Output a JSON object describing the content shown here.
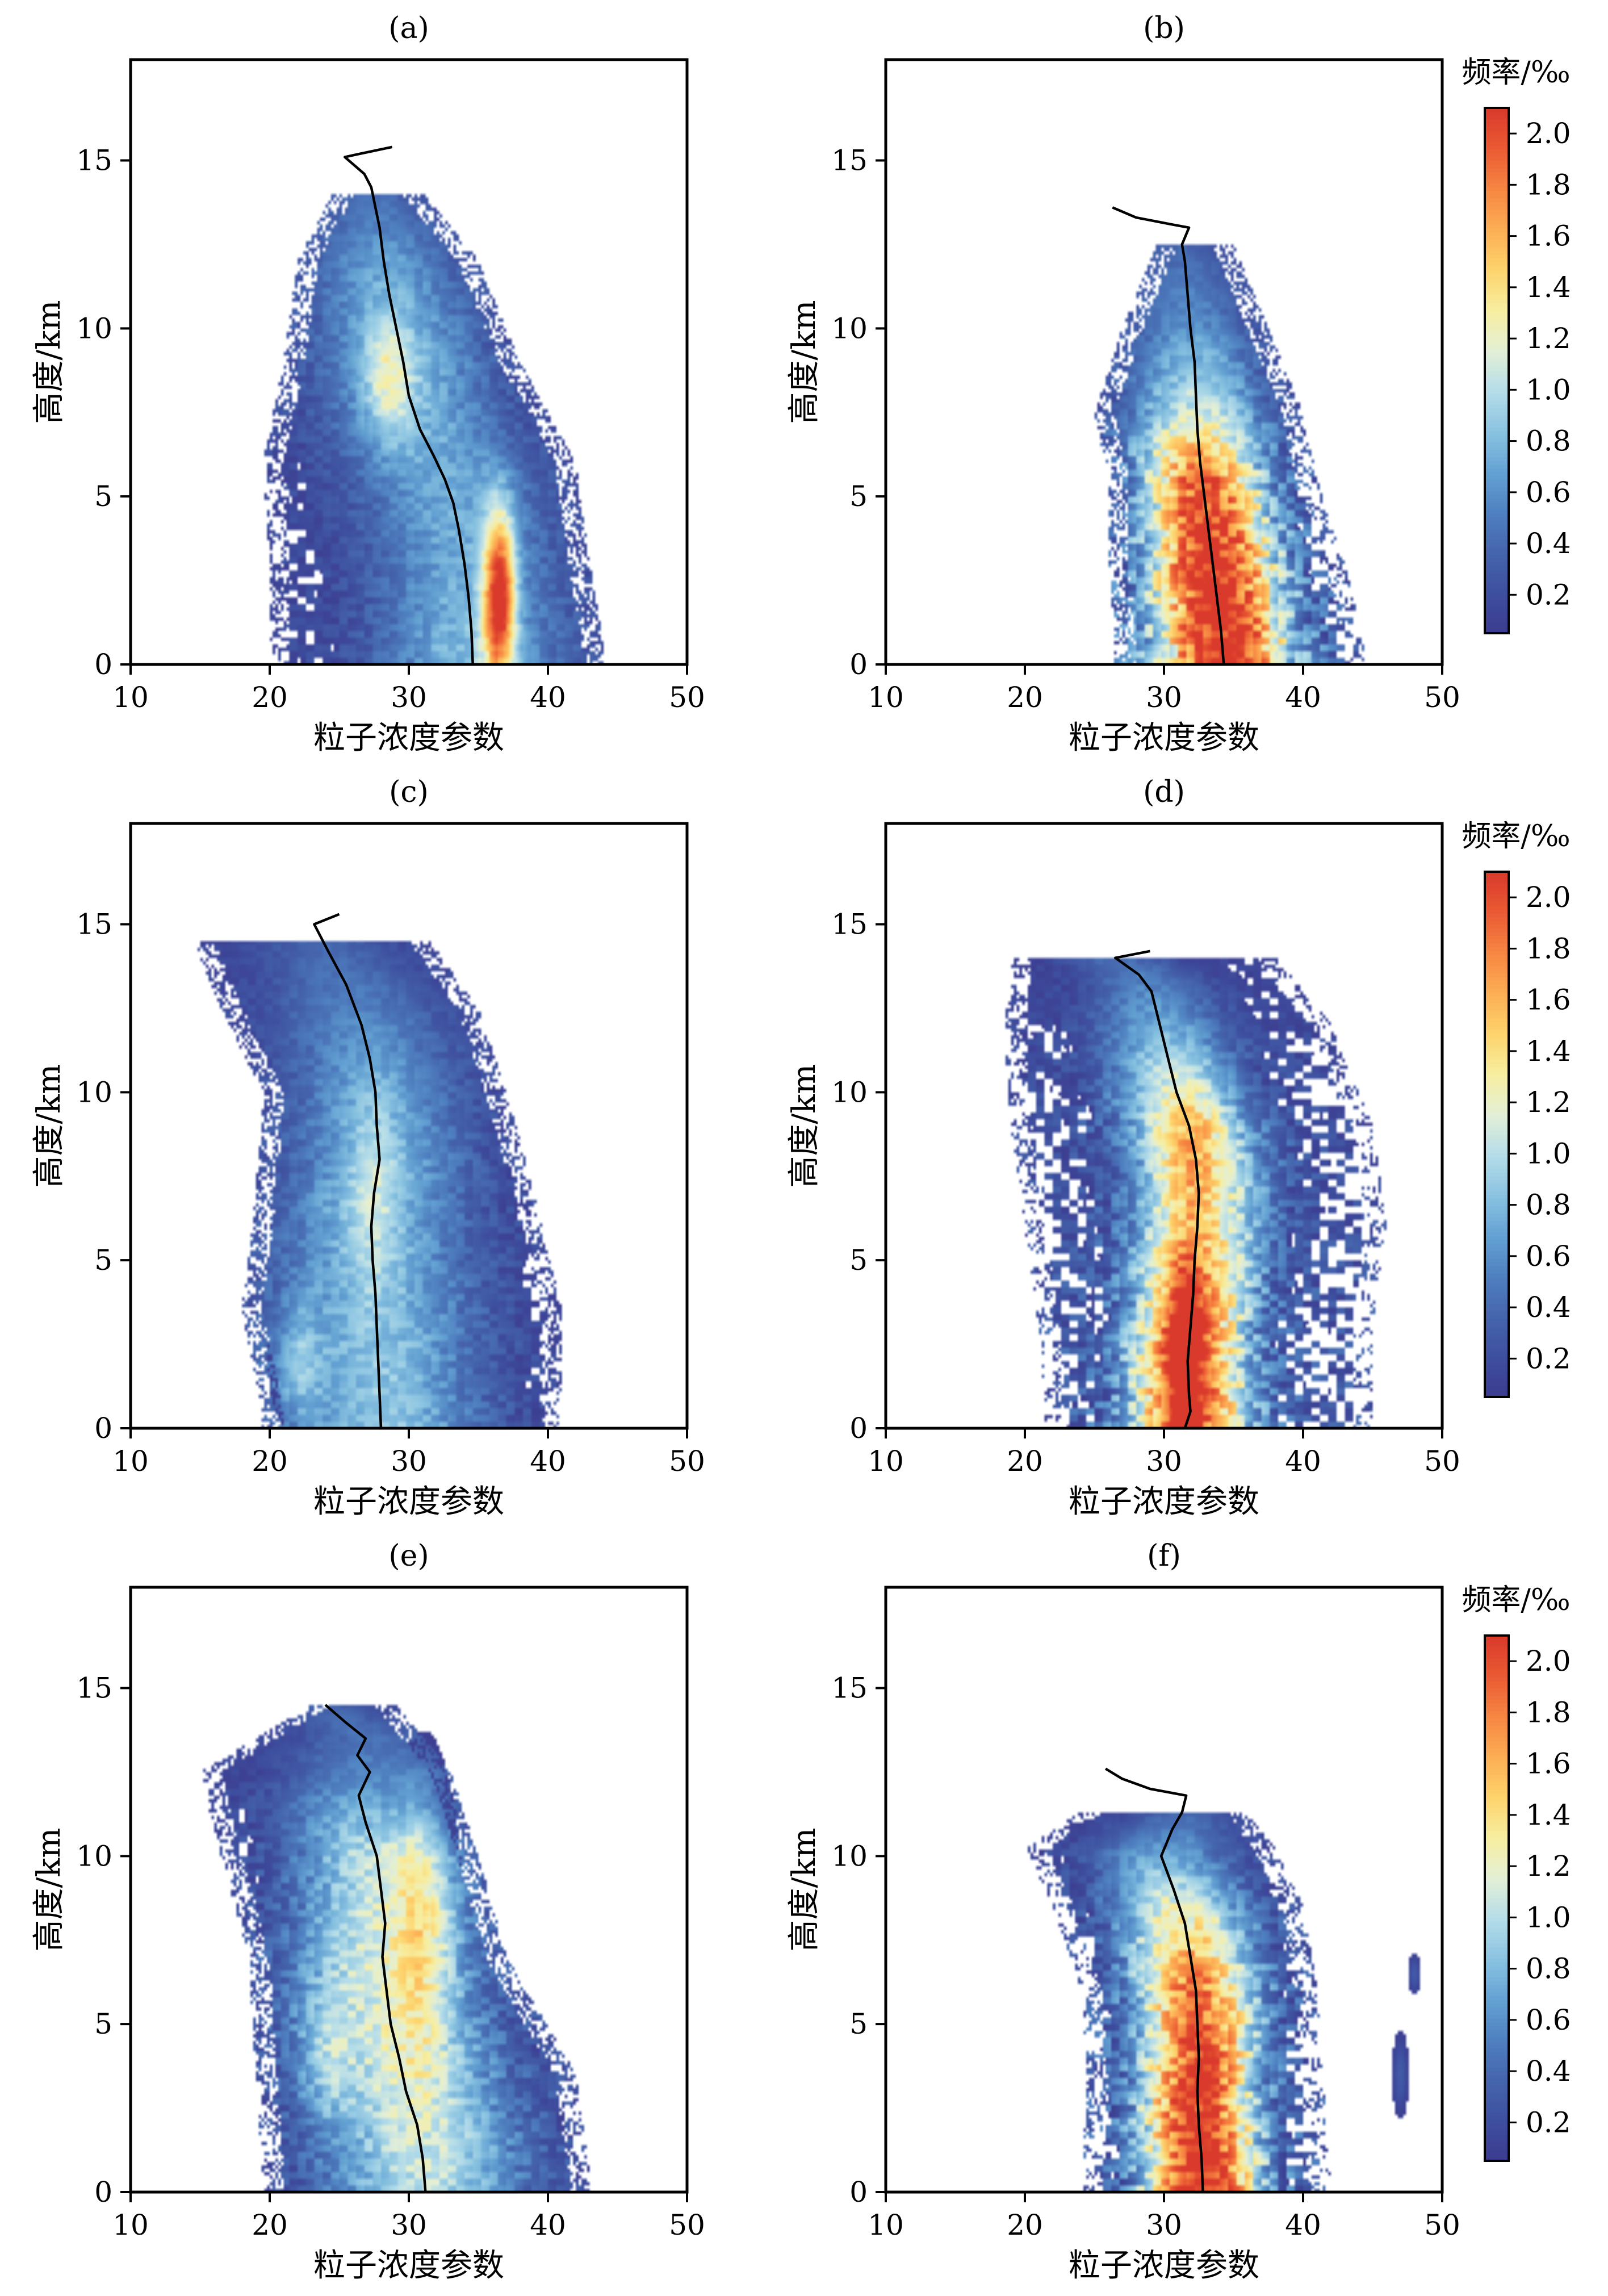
{
  "figure": {
    "xlabel": "粒子浓度参数",
    "ylabel": "高度/km",
    "xlim": [
      10,
      50
    ],
    "ylim": [
      0,
      18
    ],
    "xticks": [
      10,
      20,
      30,
      40,
      50
    ],
    "yticks": [
      0,
      5,
      10,
      15
    ],
    "colorbar": {
      "title": "频率/‰",
      "ticks": [
        "0.2",
        "0.4",
        "0.6",
        "0.8",
        "1.0",
        "1.2",
        "1.4",
        "1.6",
        "1.8",
        "2.0"
      ],
      "tick_values": [
        0.2,
        0.4,
        0.6,
        0.8,
        1.0,
        1.2,
        1.4,
        1.6,
        1.8,
        2.0
      ],
      "range": [
        0.05,
        2.1
      ],
      "colors": [
        "#3c3b8f",
        "#3e4f9f",
        "#4565ad",
        "#4f80c0",
        "#64a2d3",
        "#8ac3e1",
        "#b5dde9",
        "#e3efd6",
        "#f7eea0",
        "#fdd36c",
        "#fcae54",
        "#f68642",
        "#ea5a33",
        "#d93a2b"
      ]
    }
  },
  "chart_data": [
    {
      "panel": "(a)",
      "type": "heatmap",
      "xlabel": "粒子浓度参数",
      "ylabel": "高度/km",
      "xlim": [
        10,
        50
      ],
      "ylim": [
        0,
        18
      ],
      "density_profile": [
        {
          "y": 0.5,
          "xmin": 20,
          "xmax": 44,
          "width": 5.5,
          "peak": 0.7
        },
        {
          "y": 3,
          "xmin": 20,
          "xmax": 43,
          "width": 5.5,
          "peak": 0.6
        },
        {
          "y": 6,
          "xmin": 19.5,
          "xmax": 42,
          "width": 5.5,
          "peak": 0.6
        },
        {
          "y": 9,
          "xmin": 21,
          "xmax": 38,
          "width": 5,
          "peak": 0.7
        },
        {
          "y": 12,
          "xmin": 22,
          "xmax": 35,
          "width": 4.5,
          "peak": 0.55
        },
        {
          "y": 14,
          "xmin": 24.5,
          "xmax": 31,
          "width": 3,
          "peak": 0.3
        }
      ],
      "hotspots": [
        {
          "x": 36.5,
          "y": 2,
          "sx": 0.8,
          "sy": 1.8,
          "amp": 1.6
        },
        {
          "x": 28.5,
          "y": 8.5,
          "sx": 1.2,
          "sy": 1.3,
          "amp": 0.5
        }
      ],
      "median_line": {
        "x": [
          34.6,
          34.5,
          34.3,
          34.0,
          33.6,
          33.2,
          32.6,
          31.8,
          30.8,
          30.0,
          29.6,
          29.1,
          28.6,
          28.2,
          27.9,
          27.6,
          27.3,
          26.8,
          25.4,
          26.5,
          28.8
        ],
        "y": [
          0,
          1,
          2,
          3,
          4,
          4.8,
          5.5,
          6.2,
          7.0,
          8.0,
          9.0,
          10.0,
          11.0,
          12.0,
          13.0,
          13.6,
          14.2,
          14.6,
          15.1,
          15.2,
          15.4
        ]
      }
    },
    {
      "panel": "(b)",
      "type": "heatmap",
      "xlabel": "粒子浓度参数",
      "ylabel": "高度/km",
      "xlim": [
        10,
        50
      ],
      "ylim": [
        0,
        18
      ],
      "density_profile": [
        {
          "y": 0.5,
          "xmin": 26.5,
          "xmax": 44.5,
          "width": 4.2,
          "peak": 2.1
        },
        {
          "y": 3,
          "xmin": 26,
          "xmax": 43,
          "width": 4,
          "peak": 2.1
        },
        {
          "y": 5.5,
          "xmin": 26,
          "xmax": 41,
          "width": 3.8,
          "peak": 1.8
        },
        {
          "y": 7.5,
          "xmin": 25,
          "xmax": 40,
          "width": 4,
          "peak": 1.0
        },
        {
          "y": 10,
          "xmin": 27,
          "xmax": 37.5,
          "width": 3.5,
          "peak": 0.5
        },
        {
          "y": 12.5,
          "xmin": 29.5,
          "xmax": 35,
          "width": 2.5,
          "peak": 0.25
        }
      ],
      "hotspots": [],
      "median_line": {
        "x": [
          34.3,
          34.1,
          33.8,
          33.5,
          33.2,
          32.9,
          32.6,
          32.4,
          32.3,
          32.2,
          31.9,
          31.7,
          31.5,
          31.3,
          31.8,
          30.5,
          28.0,
          26.3
        ],
        "y": [
          0,
          1,
          2,
          3,
          4,
          5,
          6,
          7,
          8,
          9,
          10,
          11,
          12,
          12.5,
          13.0,
          13.1,
          13.3,
          13.6
        ]
      }
    },
    {
      "panel": "(c)",
      "type": "heatmap",
      "xlabel": "粒子浓度参数",
      "ylabel": "高度/km",
      "xlim": [
        10,
        50
      ],
      "ylim": [
        0,
        18
      ],
      "density_profile": [
        {
          "y": 0.5,
          "xmin": 19.5,
          "xmax": 41,
          "width": 6,
          "peak": 0.75
        },
        {
          "y": 3.5,
          "xmin": 18,
          "xmax": 41,
          "width": 6,
          "peak": 0.7
        },
        {
          "y": 7,
          "xmin": 19,
          "xmax": 39,
          "width": 5.5,
          "peak": 0.7
        },
        {
          "y": 10,
          "xmin": 19.5,
          "xmax": 37,
          "width": 5,
          "peak": 0.6
        },
        {
          "y": 12.5,
          "xmin": 16.5,
          "xmax": 35,
          "width": 5,
          "peak": 0.4
        },
        {
          "y": 14.5,
          "xmin": 14.5,
          "xmax": 31.5,
          "width": 4,
          "peak": 0.25
        }
      ],
      "hotspots": [
        {
          "x": 22,
          "y": 2,
          "sx": 1.2,
          "sy": 1.2,
          "amp": 0.4
        },
        {
          "x": 27.5,
          "y": 7,
          "sx": 1.2,
          "sy": 2,
          "amp": 0.3
        }
      ],
      "median_line": {
        "x": [
          28.0,
          27.9,
          27.8,
          27.7,
          27.6,
          27.4,
          27.3,
          27.5,
          27.9,
          27.7,
          27.6,
          27.2,
          26.6,
          25.5,
          24.2,
          23.2,
          25.0
        ],
        "y": [
          0,
          1,
          2,
          3,
          4,
          5,
          6,
          7,
          8,
          9,
          10,
          11,
          12,
          13.2,
          14.2,
          15.0,
          15.3
        ]
      }
    },
    {
      "panel": "(d)",
      "type": "heatmap",
      "xlabel": "粒子浓度参数",
      "ylabel": "高度/km",
      "xlim": [
        10,
        50
      ],
      "ylim": [
        0,
        18
      ],
      "density_profile": [
        {
          "y": 0.5,
          "xmin": 21.5,
          "xmax": 45,
          "width": 3.8,
          "peak": 1.9
        },
        {
          "y": 3,
          "xmin": 21,
          "xmax": 45,
          "width": 3.6,
          "peak": 1.8
        },
        {
          "y": 6,
          "xmin": 20,
          "xmax": 46,
          "width": 4,
          "peak": 1.3
        },
        {
          "y": 9,
          "xmin": 19,
          "xmax": 45,
          "width": 4,
          "peak": 1.2
        },
        {
          "y": 12,
          "xmin": 18.5,
          "xmax": 42,
          "width": 3.8,
          "peak": 0.6
        },
        {
          "y": 14,
          "xmin": 19,
          "xmax": 38,
          "width": 3,
          "peak": 0.3
        }
      ],
      "hotspots": [
        {
          "x": 31.5,
          "y": 2.5,
          "sx": 0.9,
          "sy": 1.8,
          "amp": 0.8
        },
        {
          "x": 32,
          "y": 8.5,
          "sx": 1.5,
          "sy": 1.5,
          "amp": 0.3
        }
      ],
      "median_line": {
        "x": [
          31.5,
          31.9,
          31.8,
          31.7,
          31.9,
          32.1,
          32.2,
          32.4,
          32.5,
          32.3,
          31.8,
          30.9,
          30.3,
          29.7,
          29.1,
          28.2,
          26.5,
          29.0
        ],
        "y": [
          0,
          0.5,
          1,
          2,
          3,
          4,
          5,
          6,
          7,
          8,
          9,
          10,
          11,
          12,
          13,
          13.5,
          14.0,
          14.2
        ]
      }
    },
    {
      "panel": "(e)",
      "type": "heatmap",
      "xlabel": "粒子浓度参数",
      "ylabel": "高度/km",
      "xlim": [
        10,
        50
      ],
      "ylim": [
        0,
        18
      ],
      "density_profile": [
        {
          "y": 0.5,
          "xmin": 19.5,
          "xmax": 43,
          "width": 6,
          "peak": 0.9
        },
        {
          "y": 3.5,
          "xmin": 19,
          "xmax": 42,
          "width": 6,
          "peak": 1.0
        },
        {
          "y": 7,
          "xmin": 18.5,
          "xmax": 37,
          "width": 5.5,
          "peak": 1.0
        },
        {
          "y": 10,
          "xmin": 16.5,
          "xmax": 35,
          "width": 5,
          "peak": 0.9
        },
        {
          "y": 12.5,
          "xmin": 15,
          "xmax": 33,
          "width": 4.5,
          "peak": 0.4
        },
        {
          "y": 14.5,
          "xmin": 23,
          "xmax": 29,
          "width": 2.5,
          "peak": 0.25
        }
      ],
      "hotspots": [
        {
          "x": 31,
          "y": 8,
          "sx": 1.5,
          "sy": 3,
          "amp": 0.5
        },
        {
          "x": 24,
          "y": 4,
          "sx": 1.3,
          "sy": 1.5,
          "amp": 0.3
        }
      ],
      "median_line": {
        "x": [
          31.2,
          31.0,
          30.6,
          29.8,
          29.3,
          28.7,
          28.4,
          28.1,
          28.3,
          28.0,
          27.7,
          26.9,
          26.4,
          27.2,
          26.3,
          26.9,
          25.4,
          24.0
        ],
        "y": [
          0,
          1,
          2,
          3,
          4,
          5,
          6,
          7,
          8,
          9,
          10,
          11,
          11.8,
          12.5,
          13.0,
          13.5,
          14.0,
          14.5
        ]
      }
    },
    {
      "panel": "(f)",
      "type": "heatmap",
      "xlabel": "粒子浓度参数",
      "ylabel": "高度/km",
      "xlim": [
        10,
        50
      ],
      "ylim": [
        0,
        18
      ],
      "density_profile": [
        {
          "y": 0.3,
          "xmin": 24,
          "xmax": 42,
          "width": 3.6,
          "peak": 2.1
        },
        {
          "y": 3,
          "xmin": 24.5,
          "xmax": 41.5,
          "width": 3.5,
          "peak": 2.0
        },
        {
          "y": 6,
          "xmin": 24,
          "xmax": 41,
          "width": 3.8,
          "peak": 1.7
        },
        {
          "y": 8.5,
          "xmin": 22,
          "xmax": 40,
          "width": 4,
          "peak": 1.1
        },
        {
          "y": 10.2,
          "xmin": 20,
          "xmax": 38,
          "width": 4,
          "peak": 0.55
        },
        {
          "y": 11.3,
          "xmin": 24,
          "xmax": 36,
          "width": 3,
          "peak": 0.25
        }
      ],
      "hotspots": [
        {
          "x": 47,
          "y": 3.5,
          "sx": 0.4,
          "sy": 0.8,
          "amp": 0.3
        },
        {
          "x": 48,
          "y": 6.5,
          "sx": 0.3,
          "sy": 0.4,
          "amp": 0.3
        }
      ],
      "median_line": {
        "x": [
          32.8,
          32.7,
          32.5,
          32.4,
          32.5,
          32.4,
          32.3,
          31.9,
          31.5,
          30.7,
          29.8,
          30.6,
          31.3,
          31.6,
          29.0,
          27.0,
          25.8
        ],
        "y": [
          0,
          1,
          2,
          3,
          4,
          5,
          6,
          7,
          8,
          9,
          10,
          10.8,
          11.3,
          11.8,
          12.0,
          12.3,
          12.6
        ]
      }
    }
  ]
}
